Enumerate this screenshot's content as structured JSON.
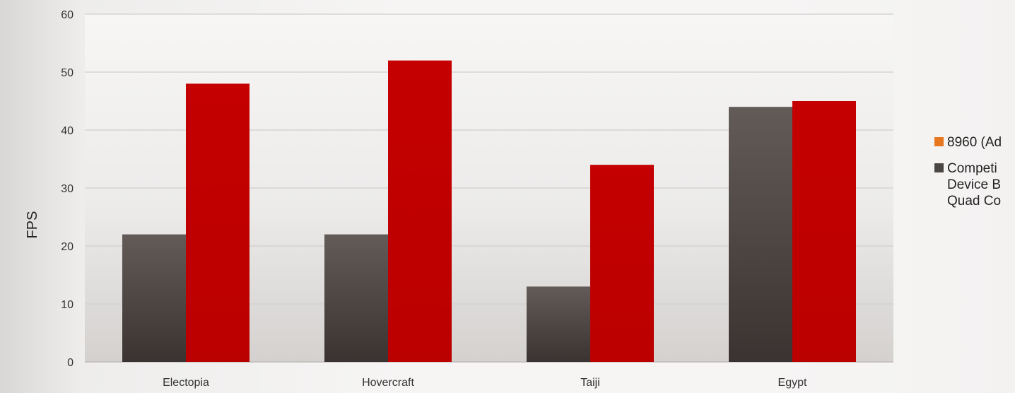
{
  "chart_data": {
    "type": "bar",
    "categories": [
      "Electopia",
      "Hovercraft",
      "Taiji",
      "Egypt"
    ],
    "series": [
      {
        "name": "Competing Device B Quad Co",
        "legend_lines": [
          "Competi",
          "Device B",
          "Quad Co"
        ],
        "color": "#4f4845",
        "values": [
          22,
          22,
          13,
          44
        ]
      },
      {
        "name": "8960 (Ad",
        "legend_lines": [
          "8960 (Ad"
        ],
        "color": "#c00000",
        "values": [
          48,
          52,
          34,
          45
        ]
      }
    ],
    "legend": [
      {
        "label": "8960 (Ad",
        "swatch_color": "#e8761e"
      },
      {
        "label_lines": [
          "Competi",
          "Device B",
          "Quad Co"
        ],
        "swatch_color": "#4a4644"
      }
    ],
    "ylabel": "FPS",
    "xlabel": "",
    "title": "",
    "ylim": [
      0,
      60
    ],
    "yticks": [
      "0",
      "10",
      "20",
      "30",
      "40",
      "50",
      "60"
    ],
    "grid": true,
    "legend_position": "right"
  }
}
